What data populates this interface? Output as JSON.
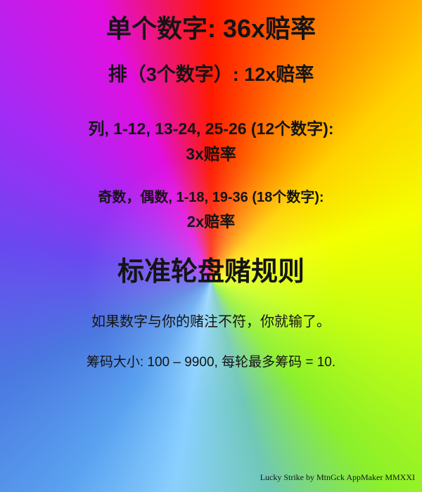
{
  "payouts": {
    "single_number": "单个数字: 36x赔率",
    "row": "排（3个数字）: 12x赔率",
    "columns_line1": "列, 1-12, 13-24, 25-26 (12个数字):",
    "columns_line2": "3x赔率",
    "evens_line1": "奇数，偶数, 1-18, 19-36 (18个数字):",
    "evens_line2": "2x赔率"
  },
  "rules": {
    "heading": "标准轮盘赌规则",
    "lose_text": "如果数字与你的赌注不符，你就输了。",
    "chips_text": "筹码大小: 100 – 9900, 每轮最多筹码 = 10."
  },
  "footer": {
    "credits": "Lucky Strike  by MtnGck  AppMaker MMXXI"
  },
  "colors": {
    "text": "#141414"
  }
}
